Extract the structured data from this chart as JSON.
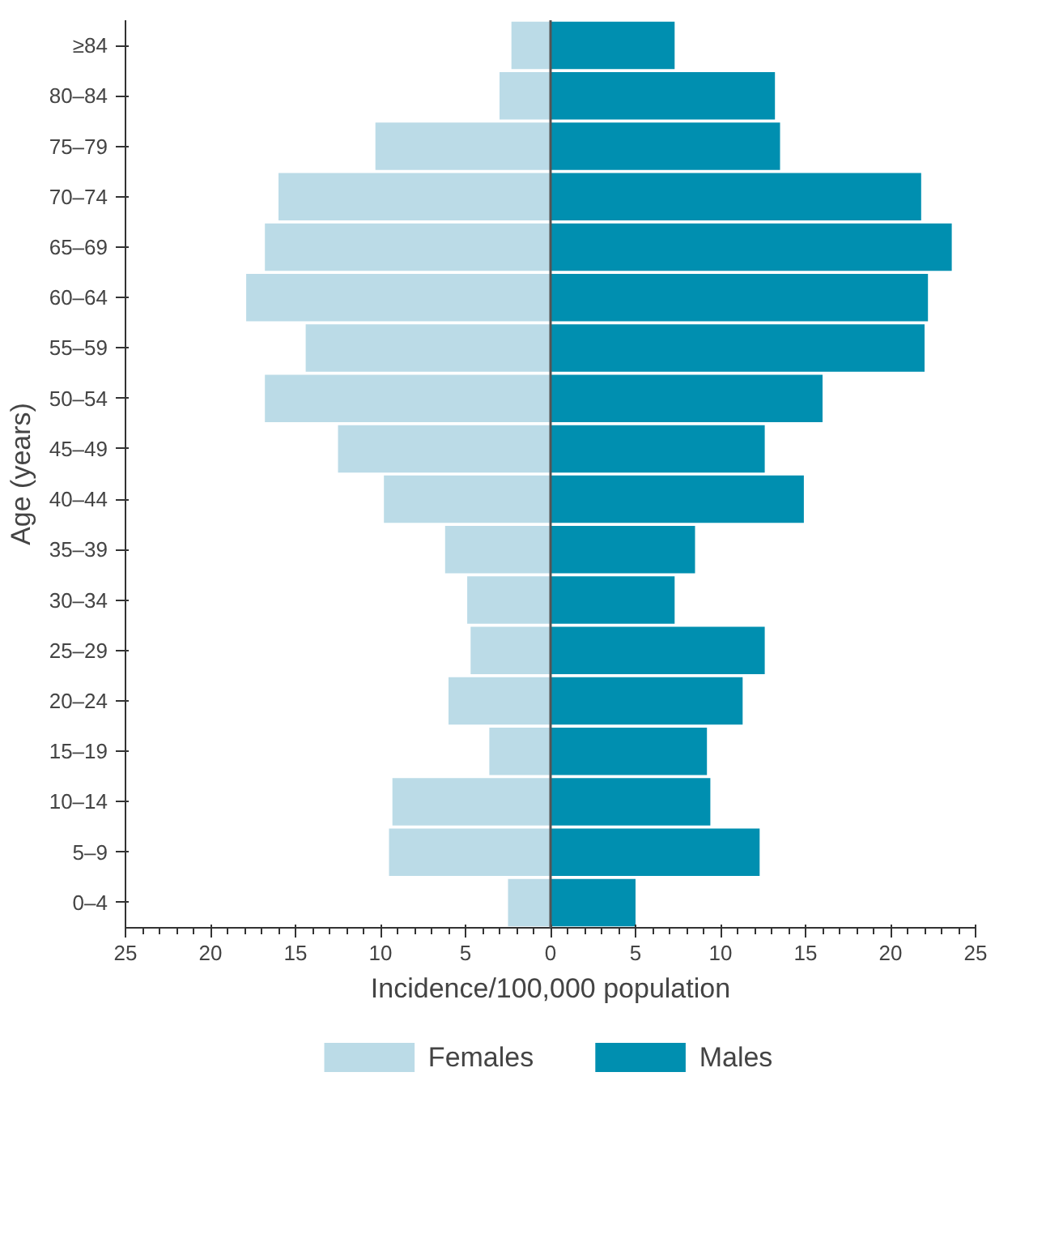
{
  "chart_data": {
    "type": "bar",
    "orientation": "horizontal",
    "xlabel": "Incidence/100,000 population",
    "ylabel": "Age (years)",
    "categories": [
      "≥84",
      "80–84",
      "75–79",
      "70–74",
      "65–69",
      "60–64",
      "55–59",
      "50–54",
      "45–49",
      "40–44",
      "35–39",
      "30–34",
      "25–29",
      "20–24",
      "15–19",
      "10–14",
      "5–9",
      "0–4"
    ],
    "series": [
      {
        "name": "Females",
        "color": "#bbdbe7",
        "values": [
          -2.3,
          -3.0,
          -10.3,
          -16.0,
          -16.8,
          -17.9,
          -14.4,
          -16.8,
          -12.5,
          -9.8,
          -6.2,
          -4.9,
          -4.7,
          -6.0,
          -3.6,
          -9.3,
          -9.5,
          -2.5
        ]
      },
      {
        "name": "Males",
        "color": "#008fb0",
        "values": [
          7.3,
          13.2,
          13.5,
          21.8,
          23.6,
          22.2,
          22.0,
          16.0,
          12.6,
          14.9,
          8.5,
          7.3,
          12.6,
          11.3,
          9.2,
          9.4,
          12.3,
          5.0
        ]
      }
    ],
    "xlim": [
      -25,
      25
    ],
    "xticks": [
      {
        "value": -25,
        "label": "25"
      },
      {
        "value": -20,
        "label": "20"
      },
      {
        "value": -15,
        "label": "15"
      },
      {
        "value": -10,
        "label": "10"
      },
      {
        "value": -5,
        "label": "5"
      },
      0,
      5,
      10,
      15,
      20,
      25
    ],
    "ref_lines": [
      {
        "axis": "x",
        "value": 0,
        "color": "#555555"
      }
    ],
    "stacked": true,
    "grid": false,
    "legend": "bottom"
  }
}
